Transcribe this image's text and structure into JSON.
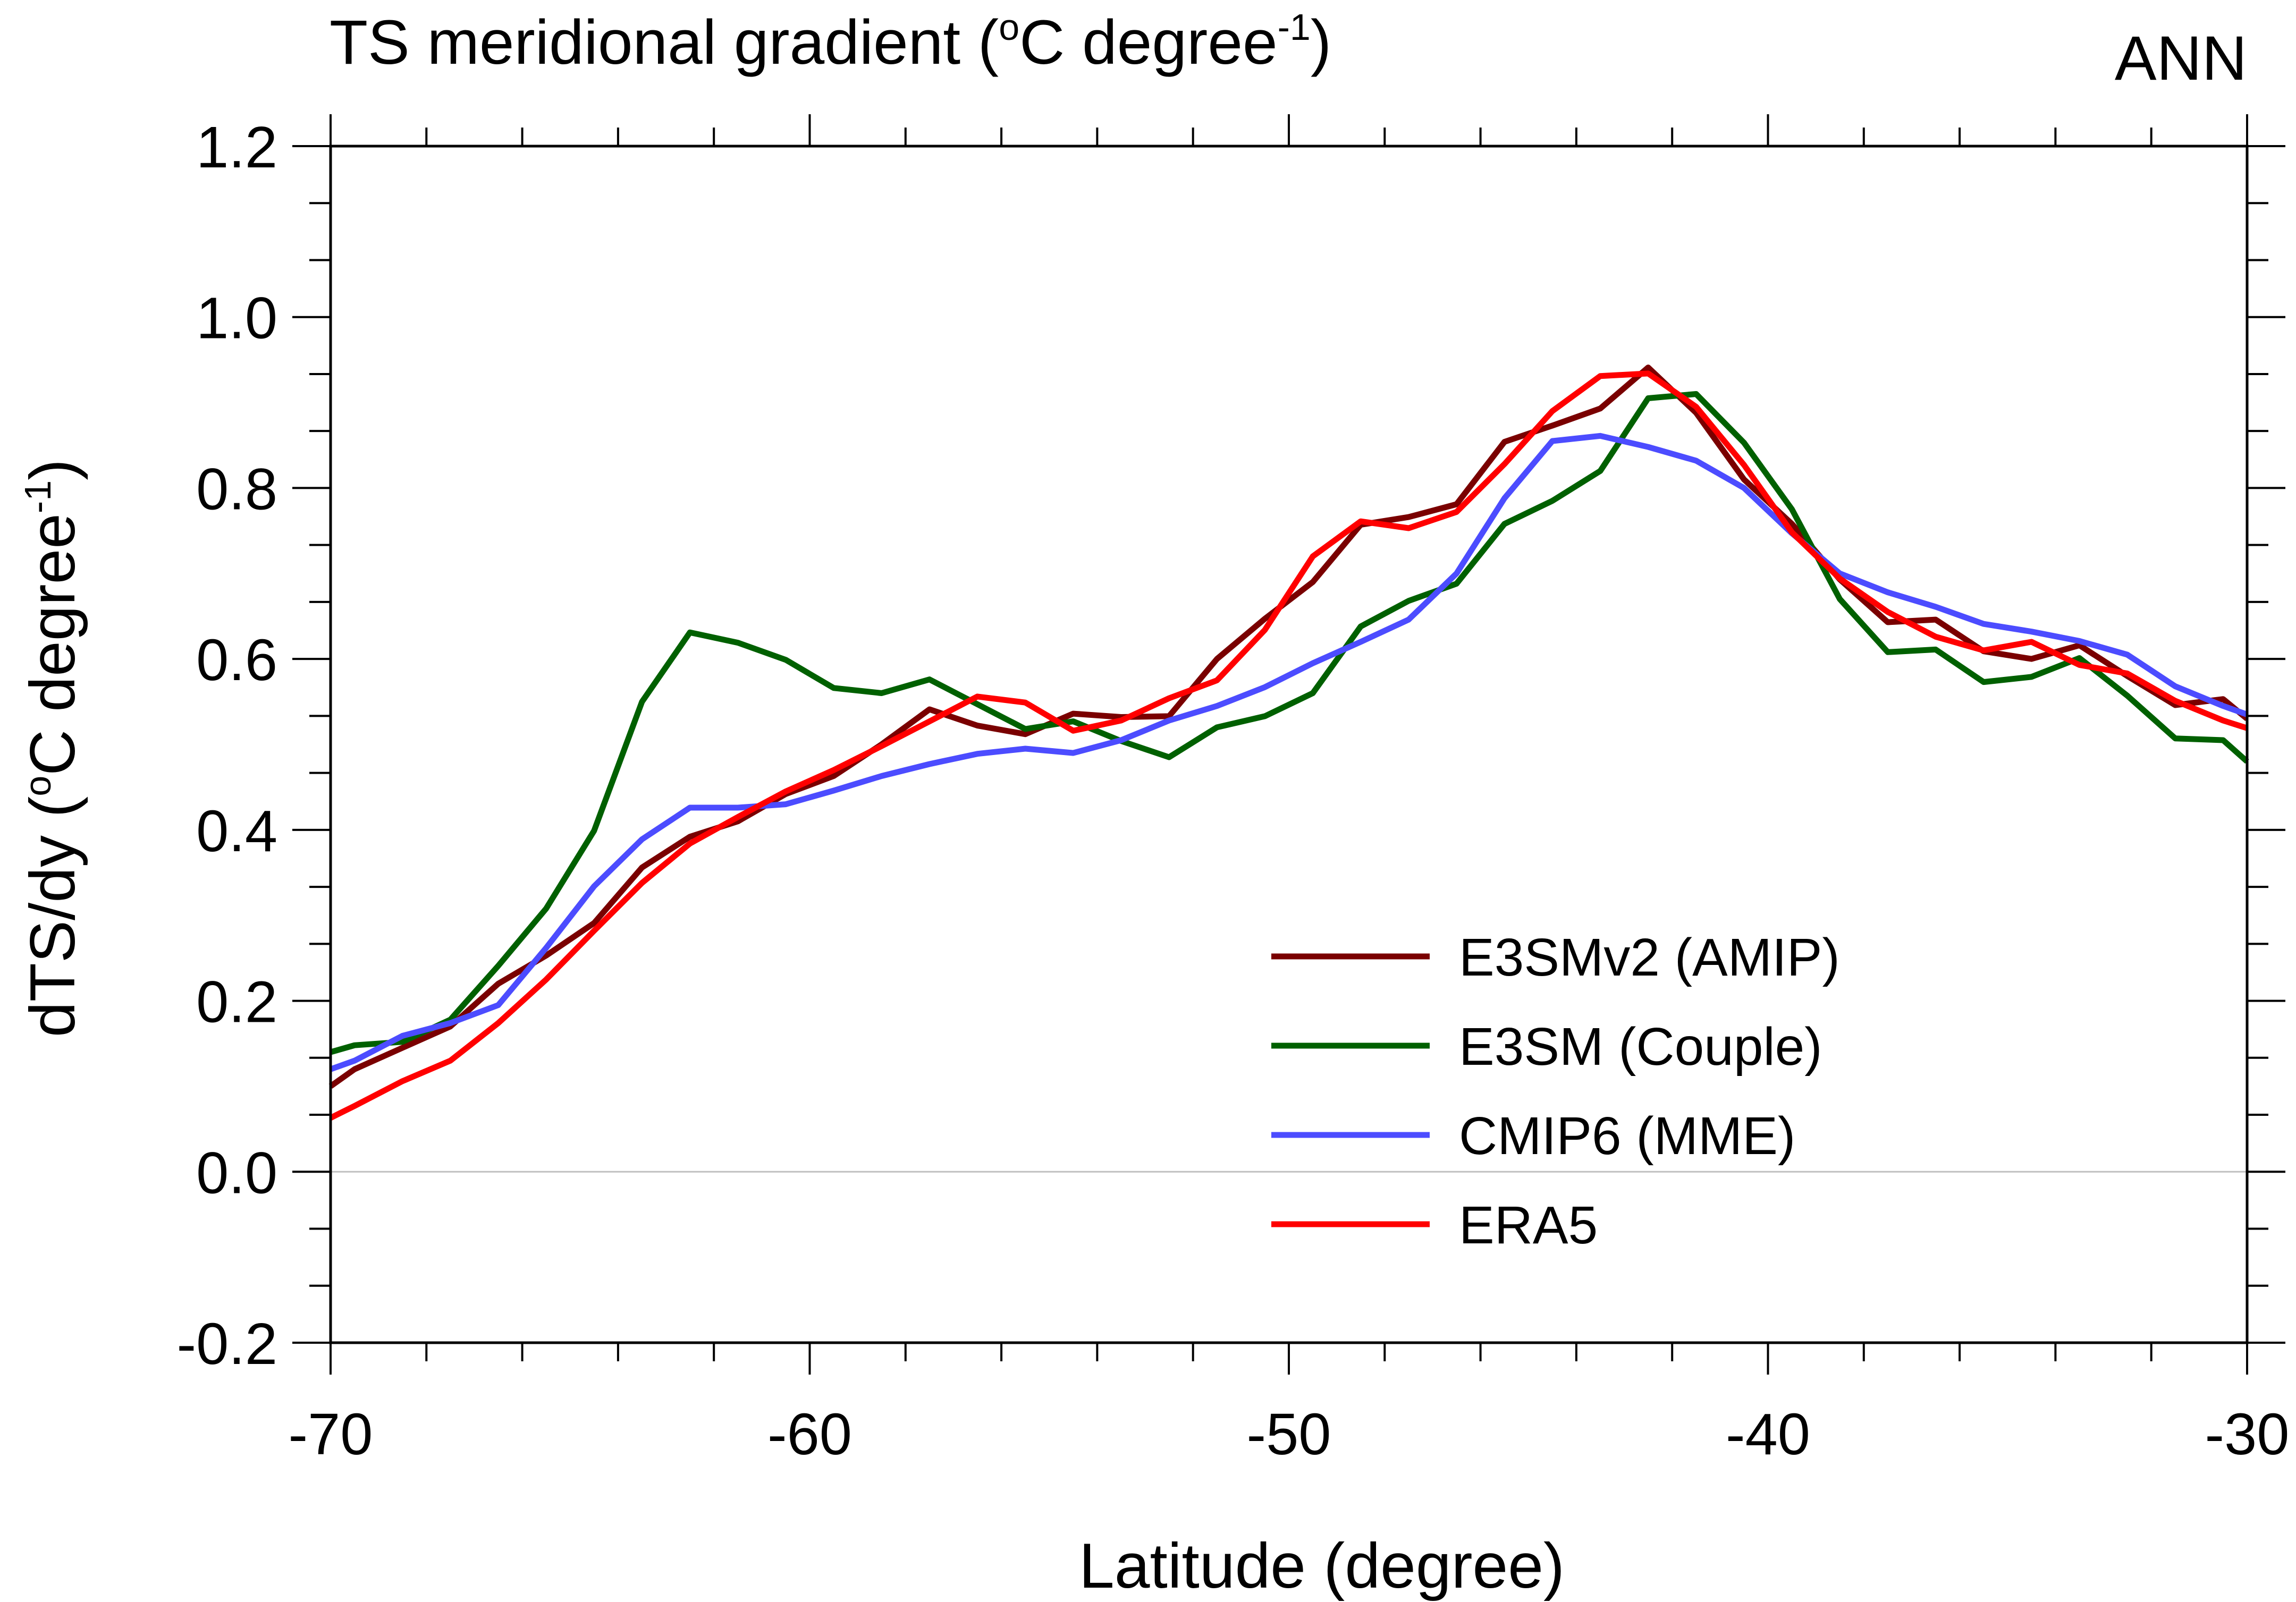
{
  "chart_data": {
    "type": "line",
    "title": "TS meridional gradient (°C degree⁻¹)",
    "title_parts": {
      "main": "TS meridional gradient (",
      "sup1": "o",
      "unit": "C degree",
      "sup2": "-1",
      "close": ")"
    },
    "season_label": "ANN",
    "xlabel": "Latitude (degree)",
    "ylabel": "dTS/dy (°C degree⁻¹)",
    "ylabel_parts": {
      "main": "dTS/dy (",
      "sup1": "o",
      "unit": "C degree",
      "sup2": "-1",
      "close": ")"
    },
    "xlim": [
      -70,
      -30
    ],
    "ylim": [
      -0.2,
      1.2
    ],
    "xticks": [
      -70,
      -60,
      -50,
      -40,
      -30
    ],
    "xtick_labels": [
      "-70",
      "-60",
      "-50",
      "-40",
      "-30"
    ],
    "yticks": [
      -0.2,
      0.0,
      0.2,
      0.4,
      0.6,
      0.8,
      1.0,
      1.2
    ],
    "ytick_labels": [
      "-0.2",
      "0.0",
      "0.2",
      "0.4",
      "0.6",
      "0.8",
      "1.0",
      "1.2"
    ],
    "x_minor_step": 2,
    "y_minor_step": 0.066667,
    "zero_line": true,
    "legend_position": "lower-right",
    "series": [
      {
        "name": "E3SMv2 (AMIP)",
        "color": "#7a0000",
        "x": [
          -70,
          -69.5,
          -68.5,
          -67.5,
          -66.5,
          -65.5,
          -64.5,
          -63.5,
          -62.5,
          -61.5,
          -60.5,
          -59.5,
          -58.5,
          -57.5,
          -56.5,
          -55.5,
          -54.5,
          -53.5,
          -52.5,
          -51.5,
          -50.5,
          -49.5,
          -48.5,
          -47.5,
          -46.5,
          -45.5,
          -44.5,
          -43.5,
          -42.5,
          -41.5,
          -40.5,
          -39.5,
          -38.5,
          -37.5,
          -36.5,
          -35.5,
          -34.5,
          -33.5,
          -32.5,
          -31.5,
          -30.5,
          -30
        ],
        "y": [
          0.1,
          0.12,
          0.145,
          0.17,
          0.22,
          0.253,
          0.291,
          0.356,
          0.392,
          0.41,
          0.442,
          0.463,
          0.5,
          0.541,
          0.522,
          0.512,
          0.536,
          0.532,
          0.533,
          0.6,
          0.647,
          0.69,
          0.757,
          0.766,
          0.781,
          0.854,
          0.873,
          0.893,
          0.941,
          0.888,
          0.81,
          0.758,
          0.693,
          0.643,
          0.646,
          0.609,
          0.6,
          0.616,
          0.58,
          0.546,
          0.553,
          0.53
        ]
      },
      {
        "name": "E3SM (Couple)",
        "color": "#006000",
        "x": [
          -70,
          -69.5,
          -68.5,
          -67.5,
          -66.5,
          -65.5,
          -64.5,
          -63.5,
          -62.5,
          -61.5,
          -60.5,
          -59.5,
          -58.5,
          -57.5,
          -56.5,
          -55.5,
          -54.5,
          -53.5,
          -52.5,
          -51.5,
          -50.5,
          -49.5,
          -48.5,
          -47.5,
          -46.5,
          -45.5,
          -44.5,
          -43.5,
          -42.5,
          -41.5,
          -40.5,
          -39.5,
          -38.5,
          -37.5,
          -36.5,
          -35.5,
          -34.5,
          -33.5,
          -32.5,
          -31.5,
          -30.5,
          -30
        ],
        "y": [
          0.14,
          0.148,
          0.152,
          0.178,
          0.241,
          0.308,
          0.399,
          0.55,
          0.631,
          0.619,
          0.599,
          0.566,
          0.56,
          0.576,
          0.547,
          0.518,
          0.527,
          0.504,
          0.485,
          0.52,
          0.533,
          0.56,
          0.638,
          0.668,
          0.688,
          0.758,
          0.785,
          0.82,
          0.905,
          0.91,
          0.853,
          0.775,
          0.67,
          0.608,
          0.611,
          0.573,
          0.579,
          0.601,
          0.557,
          0.507,
          0.505,
          0.48
        ]
      },
      {
        "name": "CMIP6 (MME)",
        "color": "#4c4cff",
        "x": [
          -70,
          -69.5,
          -68.5,
          -67.5,
          -66.5,
          -65.5,
          -64.5,
          -63.5,
          -62.5,
          -61.5,
          -60.5,
          -59.5,
          -58.5,
          -57.5,
          -56.5,
          -55.5,
          -54.5,
          -53.5,
          -52.5,
          -51.5,
          -50.5,
          -49.5,
          -48.5,
          -47.5,
          -46.5,
          -45.5,
          -44.5,
          -43.5,
          -42.5,
          -41.5,
          -40.5,
          -39.5,
          -38.5,
          -37.5,
          -36.5,
          -35.5,
          -34.5,
          -33.5,
          -32.5,
          -31.5,
          -30.5,
          -30
        ],
        "y": [
          0.12,
          0.13,
          0.159,
          0.174,
          0.195,
          0.262,
          0.334,
          0.389,
          0.426,
          0.426,
          0.43,
          0.446,
          0.463,
          0.477,
          0.489,
          0.495,
          0.49,
          0.505,
          0.528,
          0.545,
          0.567,
          0.595,
          0.62,
          0.646,
          0.7,
          0.788,
          0.855,
          0.861,
          0.848,
          0.832,
          0.8,
          0.747,
          0.7,
          0.678,
          0.661,
          0.641,
          0.632,
          0.621,
          0.605,
          0.568,
          0.545,
          0.535
        ]
      },
      {
        "name": "ERA5",
        "color": "#ff0000",
        "x": [
          -70,
          -69.5,
          -68.5,
          -67.5,
          -66.5,
          -65.5,
          -64.5,
          -63.5,
          -62.5,
          -61.5,
          -60.5,
          -59.5,
          -58.5,
          -57.5,
          -56.5,
          -55.5,
          -54.5,
          -53.5,
          -52.5,
          -51.5,
          -50.5,
          -49.5,
          -48.5,
          -47.5,
          -46.5,
          -45.5,
          -44.5,
          -43.5,
          -42.5,
          -41.5,
          -40.5,
          -39.5,
          -38.5,
          -37.5,
          -36.5,
          -35.5,
          -34.5,
          -33.5,
          -32.5,
          -31.5,
          -30.5,
          -30
        ],
        "y": [
          0.063,
          0.077,
          0.106,
          0.13,
          0.174,
          0.225,
          0.282,
          0.338,
          0.384,
          0.415,
          0.445,
          0.47,
          0.498,
          0.527,
          0.556,
          0.549,
          0.516,
          0.528,
          0.554,
          0.575,
          0.634,
          0.72,
          0.761,
          0.753,
          0.772,
          0.828,
          0.89,
          0.931,
          0.934,
          0.895,
          0.827,
          0.748,
          0.694,
          0.655,
          0.626,
          0.61,
          0.62,
          0.593,
          0.583,
          0.551,
          0.528,
          0.519
        ]
      }
    ]
  }
}
